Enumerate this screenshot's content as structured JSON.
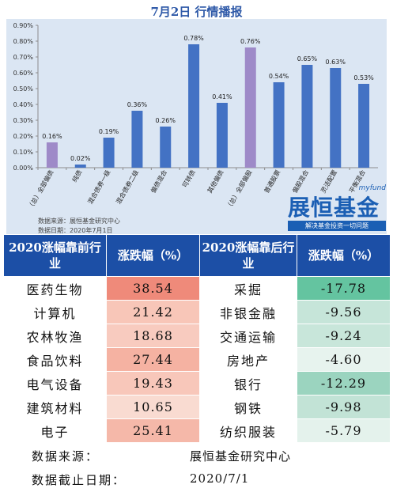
{
  "header": {
    "title": "7月2日 行情播报"
  },
  "chart_data": {
    "type": "bar",
    "categories": [
      "（总）全部偏债",
      "纯债",
      "混合债券一级",
      "混合债券二级",
      "偏债混合",
      "可转债",
      "其他偏债",
      "（总）全部偏股",
      "普通股票",
      "偏股混合",
      "灵活配置",
      "平衡混合"
    ],
    "values": [
      0.16,
      0.02,
      0.19,
      0.36,
      0.26,
      0.78,
      0.41,
      0.76,
      0.54,
      0.65,
      0.63,
      0.53
    ],
    "value_labels": [
      "0.16%",
      "0.02%",
      "0.19%",
      "0.36%",
      "0.26%",
      "0.78%",
      "0.41%",
      "0.76%",
      "0.54%",
      "0.65%",
      "0.63%",
      "0.53%"
    ],
    "highlight": [
      true,
      false,
      false,
      false,
      false,
      false,
      false,
      true,
      false,
      false,
      false,
      false
    ],
    "yticks": [
      "0.00%",
      "0.10%",
      "0.20%",
      "0.30%",
      "0.40%",
      "0.50%",
      "0.60%",
      "0.70%",
      "0.80%",
      "0.90%"
    ],
    "ylim": [
      0,
      0.9
    ],
    "colors": {
      "bar": "#4372c4",
      "highlight": "#9e8ac8",
      "panel": "#dbe6f3"
    }
  },
  "chart_source": {
    "line1": "数据来源：展恒基金研究中心",
    "line2": "数据日期：2020年7月1日"
  },
  "logo": {
    "en": "myfund",
    "cn": "展恒基金",
    "slogan": "解决基金投资一切问题"
  },
  "table": {
    "headers": [
      "2020涨幅靠前行业",
      "涨跌幅（%）",
      "2020涨幅靠后行业",
      "涨跌幅（%）"
    ],
    "rows": [
      {
        "top_name": "医药生物",
        "top_val": "38.54",
        "bot_name": "采掘",
        "bot_val": "-17.78"
      },
      {
        "top_name": "计算机",
        "top_val": "21.42",
        "bot_name": "非银金融",
        "bot_val": "-9.56"
      },
      {
        "top_name": "农林牧渔",
        "top_val": "18.68",
        "bot_name": "交通运输",
        "bot_val": "-9.24"
      },
      {
        "top_name": "食品饮料",
        "top_val": "27.44",
        "bot_name": "房地产",
        "bot_val": "-4.60"
      },
      {
        "top_name": "电气设备",
        "top_val": "19.43",
        "bot_name": "银行",
        "bot_val": "-12.29"
      },
      {
        "top_name": "建筑材料",
        "top_val": "10.65",
        "bot_name": "钢铁",
        "bot_val": "-9.98"
      },
      {
        "top_name": "电子",
        "top_val": "25.41",
        "bot_name": "纺织服装",
        "bot_val": "-5.79"
      }
    ],
    "top_colors": [
      "#ef8a7a",
      "#f8c6b8",
      "#f8cbbf",
      "#f5b2a2",
      "#f8c7ba",
      "#f9dbd1",
      "#f5b8a9"
    ],
    "bot_colors": [
      "#64c4a0",
      "#c6e5d9",
      "#c8e6da",
      "#e7f3ee",
      "#9bd4bf",
      "#c2e3d6",
      "#e4f2ec"
    ]
  },
  "footer": {
    "source_label": "数据来源：",
    "source_value": "展恒基金研究中心",
    "date_label": "数据截止日期：",
    "date_value": "2020/7/1"
  }
}
